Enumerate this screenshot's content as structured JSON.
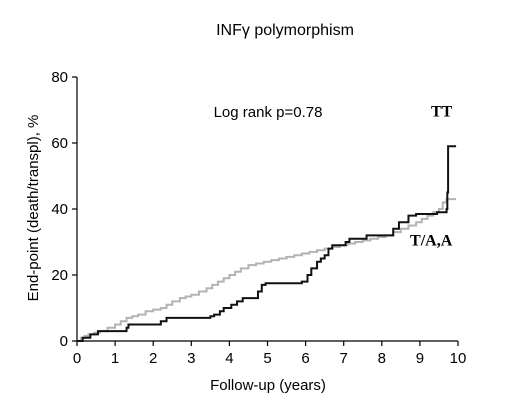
{
  "chart_data": {
    "type": "line",
    "title": "INFγ polymorphism",
    "xlabel": "Follow-up (years)",
    "ylabel": "End-point (death/transpl), %",
    "xlim": [
      0,
      10
    ],
    "ylim": [
      0,
      80
    ],
    "xticks": [
      "0",
      "1",
      "2",
      "3",
      "4",
      "5",
      "6",
      "7",
      "8",
      "9",
      "10"
    ],
    "yticks": [
      "0",
      "20",
      "40",
      "60",
      "80"
    ],
    "annotation": "Log rank p=0.78",
    "grid": false,
    "series": [
      {
        "name": "TT",
        "color": "#111111",
        "step": true,
        "points": [
          [
            0,
            0
          ],
          [
            0.15,
            1
          ],
          [
            0.35,
            2
          ],
          [
            0.55,
            3
          ],
          [
            1.3,
            4
          ],
          [
            1.35,
            5
          ],
          [
            2.2,
            6
          ],
          [
            2.35,
            7
          ],
          [
            3.5,
            7.5
          ],
          [
            3.6,
            8
          ],
          [
            3.75,
            9
          ],
          [
            3.85,
            10
          ],
          [
            4.05,
            11
          ],
          [
            4.2,
            12
          ],
          [
            4.35,
            13
          ],
          [
            4.75,
            15
          ],
          [
            4.85,
            17
          ],
          [
            4.95,
            17.5
          ],
          [
            5.9,
            18
          ],
          [
            6.05,
            20
          ],
          [
            6.15,
            22
          ],
          [
            6.3,
            24
          ],
          [
            6.4,
            25
          ],
          [
            6.5,
            26
          ],
          [
            6.6,
            28
          ],
          [
            6.7,
            29
          ],
          [
            7.05,
            30
          ],
          [
            7.15,
            31
          ],
          [
            7.6,
            32
          ],
          [
            8.3,
            34
          ],
          [
            8.45,
            36
          ],
          [
            8.7,
            38
          ],
          [
            8.9,
            38.5
          ],
          [
            9.45,
            39
          ],
          [
            9.7,
            40
          ],
          [
            9.72,
            45
          ],
          [
            9.74,
            59
          ],
          [
            9.95,
            59
          ]
        ]
      },
      {
        "name": "T/A,A",
        "color": "#b3b3b3",
        "step": true,
        "points": [
          [
            0,
            0
          ],
          [
            0.1,
            1
          ],
          [
            0.2,
            1.5
          ],
          [
            0.3,
            2
          ],
          [
            0.45,
            2.5
          ],
          [
            0.6,
            3
          ],
          [
            0.8,
            4
          ],
          [
            1,
            5
          ],
          [
            1.15,
            6
          ],
          [
            1.3,
            7
          ],
          [
            1.45,
            7.5
          ],
          [
            1.6,
            8
          ],
          [
            1.8,
            9
          ],
          [
            2,
            9.5
          ],
          [
            2.2,
            10
          ],
          [
            2.35,
            11
          ],
          [
            2.5,
            12
          ],
          [
            2.7,
            13
          ],
          [
            2.85,
            13.5
          ],
          [
            3,
            14
          ],
          [
            3.2,
            15
          ],
          [
            3.4,
            16
          ],
          [
            3.55,
            17
          ],
          [
            3.7,
            18
          ],
          [
            3.85,
            19
          ],
          [
            4,
            20
          ],
          [
            4.15,
            21
          ],
          [
            4.3,
            22
          ],
          [
            4.5,
            23
          ],
          [
            4.7,
            23.5
          ],
          [
            4.9,
            24
          ],
          [
            5.1,
            24.5
          ],
          [
            5.3,
            25
          ],
          [
            5.5,
            25.5
          ],
          [
            5.7,
            26
          ],
          [
            5.9,
            26.5
          ],
          [
            6.1,
            27
          ],
          [
            6.3,
            27.5
          ],
          [
            6.5,
            28
          ],
          [
            6.7,
            28.5
          ],
          [
            6.9,
            29
          ],
          [
            7.1,
            29.5
          ],
          [
            7.3,
            30
          ],
          [
            7.5,
            30.5
          ],
          [
            7.7,
            31
          ],
          [
            7.9,
            31.5
          ],
          [
            8.1,
            32
          ],
          [
            8.3,
            33
          ],
          [
            8.5,
            34
          ],
          [
            8.7,
            35
          ],
          [
            8.9,
            36
          ],
          [
            9.05,
            37
          ],
          [
            9.2,
            38
          ],
          [
            9.35,
            39
          ],
          [
            9.5,
            40
          ],
          [
            9.6,
            42
          ],
          [
            9.7,
            43
          ],
          [
            9.95,
            43
          ]
        ]
      }
    ],
    "series_labels": [
      {
        "text": "TT",
        "x": 9.85,
        "y": 68
      },
      {
        "text": "T/A,A",
        "x": 9.85,
        "y": 29
      }
    ]
  }
}
